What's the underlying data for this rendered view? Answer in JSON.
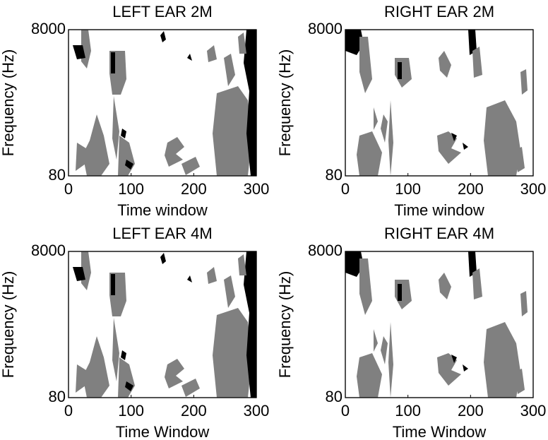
{
  "chart_data": [
    {
      "type": "mask",
      "title": "LEFT EAR 2M",
      "xlabel": "Time window",
      "ylabel": "Frequency (Hz)",
      "xlim": [
        0,
        300
      ],
      "xticks": [
        0,
        100,
        200,
        300
      ],
      "ylim": [
        80,
        8000
      ],
      "yticks": [
        80,
        8000
      ],
      "yscale": "log"
    },
    {
      "type": "mask",
      "title": "RIGHT EAR 2M",
      "xlabel": "Time window",
      "ylabel": "Frequency (Hz)",
      "xlim": [
        0,
        300
      ],
      "xticks": [
        0,
        100,
        200,
        300
      ],
      "ylim": [
        80,
        8000
      ],
      "yticks": [
        80,
        8000
      ],
      "yscale": "log"
    },
    {
      "type": "mask",
      "title": "LEFT EAR 4M",
      "xlabel": "Time Window",
      "ylabel": "Frequency (Hz)",
      "xlim": [
        0,
        300
      ],
      "xticks": [
        0,
        100,
        200,
        300
      ],
      "ylim": [
        80,
        8000
      ],
      "yticks": [
        80,
        8000
      ],
      "yscale": "log"
    },
    {
      "type": "mask",
      "title": "RIGHT EAR 4M",
      "xlabel": "Time Window",
      "ylabel": "Frequency (Hz)",
      "xlim": [
        0,
        300
      ],
      "xticks": [
        0,
        100,
        200,
        300
      ],
      "ylim": [
        80,
        8000
      ],
      "yticks": [
        80,
        8000
      ],
      "yscale": "log"
    }
  ]
}
